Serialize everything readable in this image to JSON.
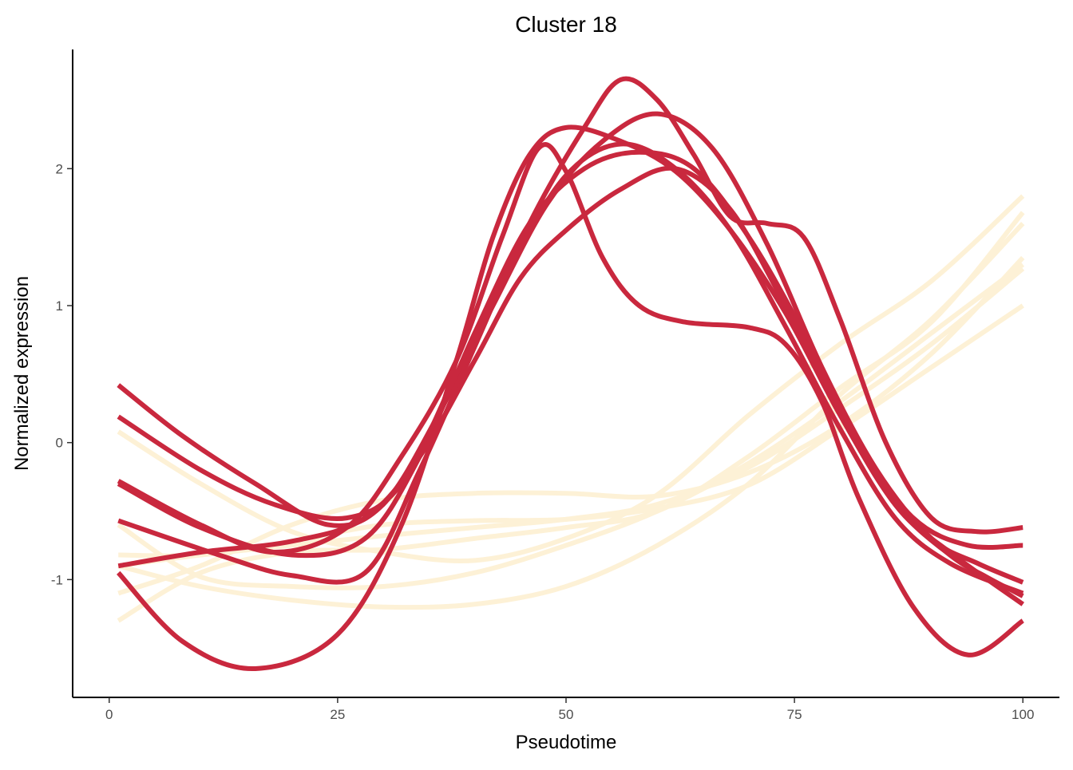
{
  "chart_data": {
    "type": "line",
    "title": "Cluster 18",
    "xlabel": "Pseudotime",
    "ylabel": "Normalized expression",
    "xlim": [
      -4,
      104
    ],
    "ylim": [
      -1.86,
      2.87
    ],
    "x_ticks": [
      0,
      25,
      50,
      75,
      100
    ],
    "x_tick_labels": [
      "0",
      "25",
      "50",
      "75",
      "100"
    ],
    "y_ticks": [
      -1,
      0,
      1,
      2
    ],
    "y_tick_labels": [
      "-1",
      "0",
      "1",
      "2"
    ],
    "grid": false,
    "legend": "none",
    "colors": {
      "red": "#c9283e",
      "cream": "#fdf1d6"
    },
    "series": [
      {
        "color": "cream",
        "x": [
          1,
          10,
          20,
          30,
          40,
          50,
          60,
          70,
          80,
          90,
          100
        ],
        "y": [
          -0.82,
          -0.82,
          -0.72,
          -0.6,
          -0.57,
          -0.56,
          -0.48,
          -0.31,
          0.1,
          0.55,
          1.0
        ]
      },
      {
        "color": "cream",
        "x": [
          1,
          10,
          20,
          30,
          40,
          50,
          60,
          70,
          80,
          90,
          100
        ],
        "y": [
          -0.9,
          -0.82,
          -0.75,
          -0.68,
          -0.62,
          -0.56,
          -0.45,
          -0.18,
          0.25,
          0.72,
          1.27
        ]
      },
      {
        "color": "cream",
        "x": [
          1,
          10,
          20,
          30,
          40,
          50,
          60,
          70,
          80,
          90,
          100
        ],
        "y": [
          -1.1,
          -0.9,
          -0.6,
          -0.42,
          -0.37,
          -0.37,
          -0.39,
          -0.22,
          0.13,
          0.65,
          1.35
        ]
      },
      {
        "color": "cream",
        "x": [
          1,
          10,
          20,
          30,
          40,
          50,
          60,
          70,
          80,
          90,
          100
        ],
        "y": [
          -1.3,
          -0.95,
          -0.8,
          -0.78,
          -0.7,
          -0.62,
          -0.5,
          -0.1,
          0.4,
          0.88,
          1.68
        ]
      },
      {
        "color": "cream",
        "x": [
          1,
          10,
          20,
          30,
          40,
          50,
          60,
          70,
          80,
          90,
          100
        ],
        "y": [
          0.08,
          -0.3,
          -0.65,
          -0.8,
          -0.86,
          -0.7,
          -0.38,
          0.2,
          0.72,
          1.18,
          1.8
        ]
      },
      {
        "color": "cream",
        "x": [
          1,
          10,
          20,
          30,
          40,
          50,
          60,
          70,
          80,
          90,
          100
        ],
        "y": [
          -0.6,
          -0.98,
          -1.05,
          -1.05,
          -0.95,
          -0.75,
          -0.5,
          -0.15,
          0.3,
          0.8,
          1.3
        ]
      },
      {
        "color": "cream",
        "x": [
          1,
          10,
          20,
          30,
          40,
          50,
          60,
          70,
          80,
          90,
          100
        ],
        "y": [
          -0.9,
          -1.05,
          -1.15,
          -1.2,
          -1.18,
          -1.05,
          -0.75,
          -0.3,
          0.35,
          0.9,
          1.6
        ]
      },
      {
        "color": "red",
        "x": [
          1,
          8,
          16,
          25,
          32,
          38,
          42,
          46,
          50,
          56,
          62,
          68,
          74,
          80,
          86,
          92,
          96,
          100
        ],
        "y": [
          -0.95,
          -1.45,
          -1.65,
          -1.4,
          -0.6,
          0.6,
          1.5,
          2.1,
          2.3,
          2.2,
          1.98,
          1.55,
          0.95,
          0.2,
          -0.45,
          -0.82,
          -0.98,
          -1.12
        ]
      },
      {
        "color": "red",
        "x": [
          1,
          10,
          18,
          26,
          32,
          38,
          43,
          47,
          50,
          54,
          58,
          63,
          70,
          74,
          78,
          82,
          88,
          94,
          100
        ],
        "y": [
          -0.28,
          -0.6,
          -0.8,
          -0.62,
          -0.1,
          0.6,
          1.5,
          2.15,
          1.98,
          1.35,
          1.0,
          0.88,
          0.84,
          0.72,
          0.3,
          -0.4,
          -1.2,
          -1.55,
          -1.3
        ]
      },
      {
        "color": "red",
        "x": [
          1,
          12,
          20,
          28,
          34,
          40,
          46,
          52,
          56,
          60,
          64,
          68,
          72,
          76,
          80,
          85,
          90,
          95,
          100
        ],
        "y": [
          -0.57,
          -0.82,
          -0.97,
          -0.95,
          -0.2,
          0.7,
          1.6,
          2.3,
          2.65,
          2.5,
          2.1,
          1.65,
          1.6,
          1.5,
          0.9,
          0.0,
          -0.55,
          -0.65,
          -0.62
        ]
      },
      {
        "color": "red",
        "x": [
          1,
          8,
          16,
          24,
          30,
          36,
          42,
          48,
          54,
          60,
          66,
          72,
          78,
          84,
          90,
          95,
          100
        ],
        "y": [
          0.42,
          0.05,
          -0.3,
          -0.6,
          -0.45,
          0.2,
          1.0,
          1.75,
          2.2,
          2.4,
          2.15,
          1.45,
          0.55,
          -0.2,
          -0.7,
          -0.88,
          -1.02
        ]
      },
      {
        "color": "red",
        "x": [
          1,
          10,
          20,
          28,
          34,
          40,
          46,
          52,
          58,
          64,
          70,
          76,
          82,
          88,
          94,
          100
        ],
        "y": [
          -0.3,
          -0.62,
          -0.82,
          -0.7,
          -0.1,
          0.8,
          1.6,
          2.0,
          2.12,
          2.0,
          1.5,
          0.8,
          0.0,
          -0.55,
          -0.75,
          -0.75
        ]
      },
      {
        "color": "red",
        "x": [
          1,
          10,
          18,
          26,
          32,
          38,
          44,
          50,
          56,
          62,
          68,
          74,
          80,
          86,
          92,
          100
        ],
        "y": [
          0.19,
          -0.2,
          -0.45,
          -0.55,
          -0.3,
          0.5,
          1.3,
          1.95,
          2.18,
          2.0,
          1.55,
          0.85,
          0.1,
          -0.55,
          -0.88,
          -1.1
        ]
      },
      {
        "color": "red",
        "x": [
          1,
          10,
          20,
          28,
          34,
          40,
          45,
          50,
          56,
          62,
          68,
          74,
          80,
          86,
          92,
          100
        ],
        "y": [
          -0.9,
          -0.8,
          -0.72,
          -0.55,
          -0.1,
          0.6,
          1.2,
          1.55,
          1.85,
          2.0,
          1.7,
          1.0,
          0.25,
          -0.45,
          -0.8,
          -1.18
        ]
      }
    ]
  }
}
